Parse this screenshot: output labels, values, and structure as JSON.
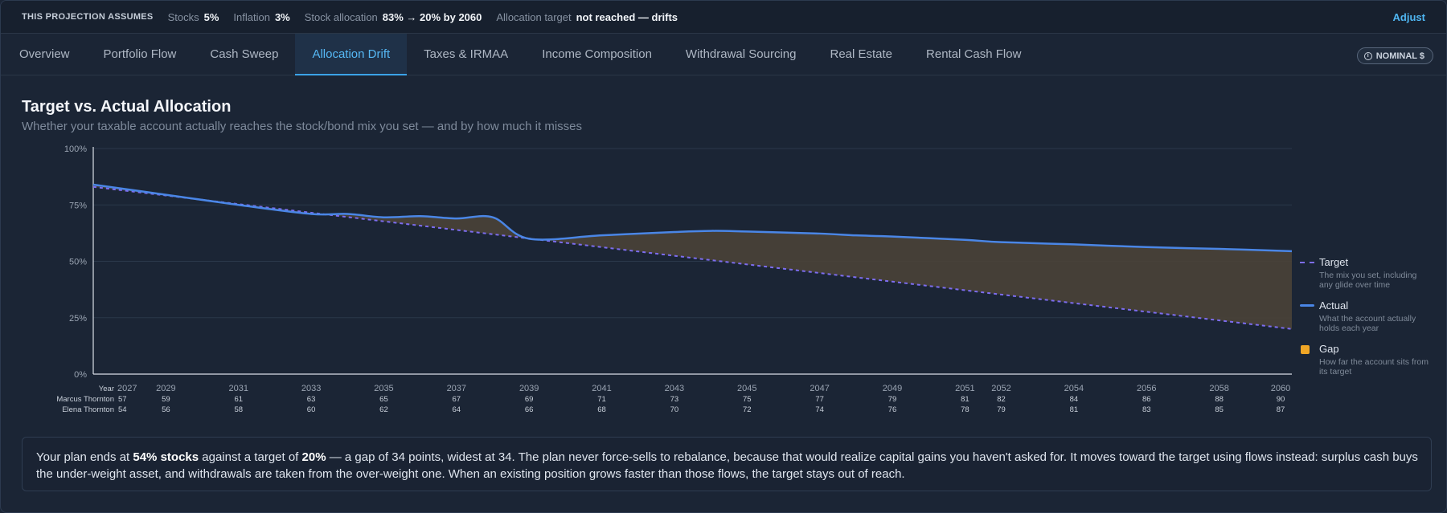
{
  "assumptions": {
    "lead": "THIS PROJECTION ASSUMES",
    "stocks_label": "Stocks",
    "stocks_value": "5%",
    "inflation_label": "Inflation",
    "inflation_value": "3%",
    "allocation_label": "Stock allocation",
    "allocation_value": "83% → 20% by 2060",
    "target_label": "Allocation target",
    "target_value": "not reached — drifts",
    "adjust": "Adjust"
  },
  "tabs": [
    {
      "label": "Overview",
      "active": false
    },
    {
      "label": "Portfolio Flow",
      "active": false
    },
    {
      "label": "Cash Sweep",
      "active": false
    },
    {
      "label": "Allocation Drift",
      "active": true
    },
    {
      "label": "Taxes & IRMAA",
      "active": false
    },
    {
      "label": "Income Composition",
      "active": false
    },
    {
      "label": "Withdrawal Sourcing",
      "active": false
    },
    {
      "label": "Real Estate",
      "active": false
    },
    {
      "label": "Rental Cash Flow",
      "active": false
    }
  ],
  "nominal_toggle": {
    "label": "NOMINAL $",
    "icon": "info-icon"
  },
  "section": {
    "title": "Target vs. Actual Allocation",
    "subtitle": "Whether your taxable account actually reaches the stock/bond mix you set — and by how much it misses"
  },
  "legend": {
    "target": {
      "title": "Target",
      "desc1": "The mix you set, including",
      "desc2": "any glide over time"
    },
    "actual": {
      "title": "Actual",
      "desc1": "What the account actually",
      "desc2": "holds each year"
    },
    "gap": {
      "title": "Gap",
      "desc1": "How far the account sits from",
      "desc2": "its target"
    }
  },
  "colors": {
    "target": "#7d6df0",
    "actual": "#4a86e6",
    "gap_fill": "#4a4237",
    "gap_swatch": "#f0a626",
    "grid": "#2b384a"
  },
  "chart_data": {
    "type": "line",
    "ylim": [
      0,
      100
    ],
    "xlim": [
      2027,
      2060
    ],
    "y_ticks": [
      "0%",
      "25%",
      "50%",
      "75%",
      "100%"
    ],
    "x_ticks": [
      2027,
      2029,
      2031,
      2033,
      2035,
      2037,
      2039,
      2041,
      2043,
      2045,
      2047,
      2049,
      2051,
      2052,
      2054,
      2056,
      2058,
      2060
    ],
    "x_row_label": "Year",
    "age_rows": [
      {
        "name": "Marcus Thornton",
        "ages": [
          57,
          59,
          61,
          63,
          65,
          67,
          69,
          71,
          73,
          75,
          77,
          79,
          81,
          82,
          84,
          86,
          88,
          90
        ]
      },
      {
        "name": "Elena Thornton",
        "ages": [
          54,
          56,
          58,
          60,
          62,
          64,
          66,
          68,
          70,
          72,
          74,
          76,
          78,
          79,
          81,
          83,
          85,
          87
        ]
      }
    ],
    "series": [
      {
        "name": "Target",
        "style": "dashed",
        "x": [
          2027,
          2060
        ],
        "y": [
          83,
          20
        ]
      },
      {
        "name": "Actual",
        "style": "solid",
        "x": [
          2027,
          2029,
          2031,
          2033,
          2034,
          2035,
          2036,
          2037,
          2038,
          2039,
          2041,
          2043,
          2044,
          2045,
          2047,
          2048,
          2049,
          2051,
          2052,
          2054,
          2056,
          2058,
          2060
        ],
        "y": [
          84,
          79.5,
          75,
          71,
          71,
          69.5,
          70,
          69,
          69.5,
          60,
          61.5,
          63,
          63.5,
          63.2,
          62.3,
          61.5,
          61,
          59.5,
          58.5,
          57.5,
          56.3,
          55.5,
          54.5
        ]
      }
    ]
  },
  "note": {
    "p1": "Your plan ends at ",
    "b1": "54% stocks",
    "p2": " against a target of ",
    "b2": "20%",
    "p3": " — a gap of 34 points, widest at 34. The plan never force-sells to rebalance, because that would realize capital gains you haven't asked for. It moves toward the target using flows instead: surplus cash buys the under-weight asset, and withdrawals are taken from the over-weight one. When an existing position grows faster than those flows, the target stays out of reach."
  }
}
